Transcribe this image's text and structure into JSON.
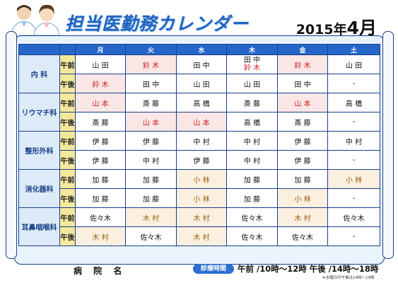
{
  "header": {
    "title": "担当医勤務カレンダー",
    "year_label": "2015年",
    "month_label": "4月"
  },
  "table": {
    "days": [
      "月",
      "火",
      "水",
      "木",
      "金",
      "土"
    ],
    "periods": [
      "午前",
      "午後"
    ],
    "departments": [
      {
        "name": "内 科",
        "am": [
          {
            "lines": [
              "山 田"
            ],
            "hl": ""
          },
          {
            "lines": [
              "鈴 木"
            ],
            "hl": "red"
          },
          {
            "lines": [
              "田 中"
            ],
            "hl": ""
          },
          {
            "lines": [
              "田 中",
              "鈴 木"
            ],
            "hl": "mixed"
          },
          {
            "lines": [
              "鈴 木"
            ],
            "hl": "red"
          },
          {
            "lines": [
              "山 田"
            ],
            "hl": ""
          }
        ],
        "pm": [
          {
            "lines": [
              "鈴 木"
            ],
            "hl": "red"
          },
          {
            "lines": [
              "田 中"
            ],
            "hl": ""
          },
          {
            "lines": [
              "山 田"
            ],
            "hl": ""
          },
          {
            "lines": [
              "山 田"
            ],
            "hl": ""
          },
          {
            "lines": [
              "田 中"
            ],
            "hl": ""
          },
          {
            "lines": [
              "-"
            ],
            "hl": ""
          }
        ]
      },
      {
        "name": "リウマチ科",
        "am": [
          {
            "lines": [
              "山 本"
            ],
            "hl": "red"
          },
          {
            "lines": [
              "斎 藤"
            ],
            "hl": ""
          },
          {
            "lines": [
              "高 橋"
            ],
            "hl": ""
          },
          {
            "lines": [
              "斎 藤"
            ],
            "hl": ""
          },
          {
            "lines": [
              "山 本"
            ],
            "hl": "red"
          },
          {
            "lines": [
              "高 橋"
            ],
            "hl": ""
          }
        ],
        "pm": [
          {
            "lines": [
              "斎 藤"
            ],
            "hl": ""
          },
          {
            "lines": [
              "山 本"
            ],
            "hl": "red"
          },
          {
            "lines": [
              "山 本"
            ],
            "hl": "red"
          },
          {
            "lines": [
              "高 橋"
            ],
            "hl": ""
          },
          {
            "lines": [
              "斎 藤"
            ],
            "hl": ""
          },
          {
            "lines": [
              "-"
            ],
            "hl": ""
          }
        ]
      },
      {
        "name": "整形外科",
        "am": [
          {
            "lines": [
              "伊 藤"
            ],
            "hl": ""
          },
          {
            "lines": [
              "伊 藤"
            ],
            "hl": ""
          },
          {
            "lines": [
              "中 村"
            ],
            "hl": ""
          },
          {
            "lines": [
              "中 村"
            ],
            "hl": ""
          },
          {
            "lines": [
              "伊 藤"
            ],
            "hl": ""
          },
          {
            "lines": [
              "中 村"
            ],
            "hl": ""
          }
        ],
        "pm": [
          {
            "lines": [
              "伊 藤"
            ],
            "hl": ""
          },
          {
            "lines": [
              "中 村"
            ],
            "hl": ""
          },
          {
            "lines": [
              "伊 藤"
            ],
            "hl": ""
          },
          {
            "lines": [
              "中 村"
            ],
            "hl": ""
          },
          {
            "lines": [
              "伊 藤"
            ],
            "hl": ""
          },
          {
            "lines": [
              "-"
            ],
            "hl": ""
          }
        ]
      },
      {
        "name": "消化器科",
        "am": [
          {
            "lines": [
              "加 藤"
            ],
            "hl": ""
          },
          {
            "lines": [
              "加 藤"
            ],
            "hl": ""
          },
          {
            "lines": [
              "小 林"
            ],
            "hl": "brown"
          },
          {
            "lines": [
              "加 藤"
            ],
            "hl": ""
          },
          {
            "lines": [
              "加 藤"
            ],
            "hl": ""
          },
          {
            "lines": [
              "小 林"
            ],
            "hl": "brown"
          }
        ],
        "pm": [
          {
            "lines": [
              "加 藤"
            ],
            "hl": ""
          },
          {
            "lines": [
              "加 藤"
            ],
            "hl": ""
          },
          {
            "lines": [
              "小 林"
            ],
            "hl": "brown"
          },
          {
            "lines": [
              "加 藤"
            ],
            "hl": ""
          },
          {
            "lines": [
              "小 林"
            ],
            "hl": "brown"
          },
          {
            "lines": [
              "-"
            ],
            "hl": ""
          }
        ]
      },
      {
        "name": "耳鼻咽喉科",
        "am": [
          {
            "lines": [
              "佐々木"
            ],
            "hl": ""
          },
          {
            "lines": [
              "木 村"
            ],
            "hl": "brown"
          },
          {
            "lines": [
              "木 村"
            ],
            "hl": "brown"
          },
          {
            "lines": [
              "佐々木"
            ],
            "hl": ""
          },
          {
            "lines": [
              "木 村"
            ],
            "hl": "brown"
          },
          {
            "lines": [
              "佐々木"
            ],
            "hl": ""
          }
        ],
        "pm": [
          {
            "lines": [
              "木 村"
            ],
            "hl": "brown"
          },
          {
            "lines": [
              "佐々木"
            ],
            "hl": ""
          },
          {
            "lines": [
              "木 村"
            ],
            "hl": "brown"
          },
          {
            "lines": [
              "佐々木"
            ],
            "hl": ""
          },
          {
            "lines": [
              "佐々木"
            ],
            "hl": ""
          },
          {
            "lines": [
              "-"
            ],
            "hl": ""
          }
        ]
      }
    ]
  },
  "footer": {
    "hospital_label": "病 院 名",
    "shinryo_badge": "診療時間",
    "hours_text": "午前 /10時〜12時  午後 /14時〜18時",
    "note": "※水曜日の午後は14時〜19時"
  },
  "colors": {
    "title": "#1f63c0",
    "header_row": "#2666c9",
    "dept_bg": "#dcebf7",
    "period_bg": "#f4e89c",
    "highlight_red": "#d21a1a",
    "highlight_brown": "#9a6210",
    "frame": "#1a3f8c"
  },
  "icons": {
    "header_illustration": "two-doctors-icon"
  }
}
